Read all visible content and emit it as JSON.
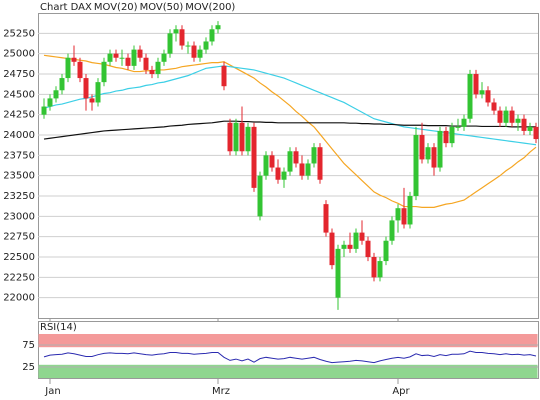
{
  "chart_data": [
    {
      "type": "candlestick",
      "title": "Chart DAX",
      "title_color": "#e0452b",
      "categories": [
        null,
        "Jan",
        null,
        null,
        null,
        null,
        null,
        null,
        null,
        null,
        null,
        null,
        null,
        null,
        null,
        null,
        null,
        null,
        null,
        null,
        null,
        null,
        null,
        null,
        null,
        null,
        null,
        null,
        null,
        "Mrz",
        null,
        null,
        null,
        null,
        null,
        null,
        null,
        null,
        null,
        null,
        null,
        null,
        null,
        null,
        null,
        null,
        null,
        null,
        null,
        null,
        null,
        null,
        null,
        null,
        null,
        null,
        null,
        null,
        null,
        "Apr",
        null,
        null,
        null,
        null,
        null,
        null,
        null,
        null,
        null,
        null,
        null,
        null,
        null,
        null,
        null,
        null,
        null,
        null,
        null,
        null,
        null,
        null,
        null
      ],
      "open": [
        24250,
        24350,
        24450,
        24550,
        24700,
        24950,
        24900,
        24700,
        24450,
        24400,
        24650,
        24900,
        25000,
        24950,
        24950,
        24850,
        25050,
        24950,
        24800,
        24750,
        24900,
        25000,
        25250,
        25300,
        25100,
        25100,
        24950,
        25050,
        25150,
        25300,
        24850,
        24150,
        23800,
        24150,
        23800,
        24100,
        23000,
        23500,
        23750,
        23600,
        23450,
        23550,
        23800,
        23650,
        23500,
        23650,
        23850,
        23150,
        22800,
        22000,
        22600,
        22650,
        22600,
        22800,
        22700,
        22500,
        22250,
        22450,
        22700,
        22950,
        23100,
        22900,
        23250,
        24000,
        23700,
        23850,
        23600,
        24050,
        23900,
        24100,
        24100,
        24200,
        24750,
        24500,
        24550,
        24400,
        24300,
        24150,
        24300,
        24150,
        24200,
        24050,
        24100
      ],
      "high": [
        24450,
        24500,
        24600,
        24750,
        25000,
        25100,
        24950,
        24750,
        24500,
        24700,
        24950,
        25050,
        25050,
        25050,
        25000,
        25100,
        25100,
        25000,
        24850,
        24950,
        25050,
        25300,
        25350,
        25350,
        25150,
        25150,
        25100,
        25200,
        25350,
        25400,
        24900,
        24200,
        24200,
        24350,
        24150,
        24150,
        23550,
        23800,
        23800,
        23700,
        23600,
        23850,
        23850,
        23750,
        23700,
        23900,
        23900,
        23200,
        22850,
        22650,
        22700,
        22800,
        22850,
        22950,
        22750,
        22550,
        22500,
        22750,
        23000,
        23150,
        23350,
        23300,
        24100,
        24150,
        23900,
        23900,
        24100,
        24100,
        24150,
        24200,
        24250,
        24800,
        24800,
        24650,
        24600,
        24450,
        24350,
        24350,
        24350,
        24250,
        24250,
        24150,
        24150
      ],
      "low": [
        24200,
        24300,
        24400,
        24500,
        24650,
        24850,
        24650,
        24300,
        24300,
        24350,
        24600,
        24850,
        24900,
        24850,
        24800,
        24800,
        24900,
        24750,
        24700,
        24700,
        24850,
        24950,
        25150,
        25050,
        25000,
        24900,
        24900,
        25000,
        25100,
        25250,
        24550,
        23750,
        23750,
        23750,
        23750,
        23300,
        22950,
        23450,
        23550,
        23400,
        23350,
        23500,
        23600,
        23450,
        23450,
        23600,
        23400,
        22750,
        22350,
        21850,
        22500,
        22550,
        22550,
        22650,
        22450,
        22200,
        22200,
        22400,
        22650,
        22800,
        22850,
        22850,
        23200,
        23650,
        23650,
        23500,
        23550,
        23850,
        23850,
        24050,
        24050,
        24150,
        24450,
        24450,
        24350,
        24250,
        24100,
        24100,
        24100,
        24050,
        24000,
        24000,
        23900
      ],
      "close": [
        24350,
        24450,
        24550,
        24700,
        24950,
        24900,
        24700,
        24450,
        24400,
        24650,
        24900,
        25000,
        24950,
        24950,
        24850,
        25050,
        24950,
        24800,
        24750,
        24900,
        25000,
        25250,
        25300,
        25100,
        25100,
        24950,
        25050,
        25150,
        25300,
        25350,
        24600,
        23800,
        24150,
        23800,
        24100,
        23350,
        23500,
        23750,
        23600,
        23450,
        23550,
        23800,
        23650,
        23500,
        23650,
        23850,
        23450,
        22800,
        22400,
        22600,
        22650,
        22600,
        22800,
        22700,
        22500,
        22250,
        22450,
        22700,
        22950,
        23100,
        22900,
        23250,
        24000,
        23700,
        23850,
        23600,
        24050,
        23900,
        24100,
        24100,
        24200,
        24750,
        24500,
        24550,
        24400,
        24300,
        24150,
        24300,
        24150,
        24200,
        24050,
        24100,
        23950
      ],
      "up_color": "#33c433",
      "down_color": "#e3262e",
      "series": [
        {
          "name": "MOV(20)",
          "color": "#f5a623",
          "values": [
            24980,
            24970,
            24960,
            24950,
            24940,
            24930,
            24920,
            24910,
            24890,
            24880,
            24870,
            24850,
            24830,
            24820,
            24800,
            24780,
            24780,
            24790,
            24790,
            24800,
            24800,
            24810,
            24820,
            24840,
            24850,
            24860,
            24870,
            24880,
            24890,
            24890,
            24900,
            24860,
            24820,
            24780,
            24740,
            24700,
            24640,
            24590,
            24530,
            24480,
            24420,
            24360,
            24290,
            24230,
            24160,
            24100,
            24010,
            23920,
            23830,
            23740,
            23650,
            23580,
            23510,
            23440,
            23370,
            23300,
            23260,
            23230,
            23190,
            23160,
            23120,
            23120,
            23120,
            23110,
            23110,
            23110,
            23130,
            23150,
            23160,
            23180,
            23200,
            23250,
            23300,
            23350,
            23400,
            23450,
            23500,
            23560,
            23610,
            23670,
            23720,
            23790,
            23850
          ]
        },
        {
          "name": "MOV(50)",
          "color": "#3ccfe6",
          "values": [
            24330,
            24350,
            24370,
            24380,
            24400,
            24420,
            24440,
            24450,
            24470,
            24490,
            24510,
            24520,
            24540,
            24550,
            24570,
            24580,
            24590,
            24610,
            24620,
            24640,
            24650,
            24670,
            24690,
            24710,
            24730,
            24760,
            24790,
            24820,
            24830,
            24840,
            24850,
            24840,
            24830,
            24820,
            24810,
            24800,
            24780,
            24760,
            24740,
            24720,
            24700,
            24670,
            24640,
            24610,
            24580,
            24550,
            24520,
            24490,
            24460,
            24430,
            24400,
            24360,
            24320,
            24280,
            24240,
            24200,
            24180,
            24160,
            24140,
            24120,
            24100,
            24090,
            24080,
            24070,
            24060,
            24050,
            24040,
            24030,
            24020,
            24010,
            24000,
            23990,
            23980,
            23970,
            23960,
            23950,
            23940,
            23930,
            23920,
            23910,
            23900,
            23890,
            23880
          ]
        },
        {
          "name": "MOV(200)",
          "color": "#111111",
          "values": [
            23950,
            23960,
            23970,
            23980,
            23990,
            24000,
            24010,
            24020,
            24030,
            24040,
            24050,
            24055,
            24060,
            24065,
            24070,
            24075,
            24080,
            24085,
            24090,
            24095,
            24100,
            24110,
            24115,
            24120,
            24130,
            24135,
            24140,
            24145,
            24150,
            24160,
            24170,
            24170,
            24170,
            24165,
            24165,
            24160,
            24160,
            24155,
            24155,
            24150,
            24150,
            24150,
            24150,
            24150,
            24150,
            24150,
            24150,
            24150,
            24150,
            24150,
            24150,
            24145,
            24145,
            24140,
            24140,
            24135,
            24135,
            24130,
            24130,
            24125,
            24120,
            24120,
            24120,
            24120,
            24115,
            24115,
            24115,
            24115,
            24110,
            24110,
            24110,
            24110,
            24110,
            24105,
            24105,
            24105,
            24105,
            24105,
            24100,
            24100,
            24100,
            24100,
            24100
          ]
        }
      ],
      "ylim": [
        21750,
        25500
      ],
      "yticks": [
        22000,
        22250,
        22500,
        22750,
        23000,
        23250,
        23500,
        23750,
        24000,
        24250,
        24500,
        24750,
        25000,
        25250
      ],
      "grid": true
    },
    {
      "type": "line",
      "title": "RSI(14)",
      "series": [
        {
          "name": null,
          "color": "#2b2bb0",
          "values": [
            48,
            52,
            53,
            54,
            57,
            55,
            52,
            49,
            49,
            53,
            56,
            57,
            56,
            56,
            55,
            57,
            55,
            53,
            52,
            54,
            55,
            58,
            58,
            56,
            56,
            54,
            55,
            56,
            58,
            58,
            47,
            40,
            43,
            39,
            43,
            36,
            44,
            47,
            45,
            43,
            44,
            47,
            45,
            43,
            45,
            47,
            42,
            38,
            35,
            36,
            37,
            38,
            40,
            39,
            37,
            35,
            39,
            42,
            45,
            47,
            45,
            48,
            55,
            51,
            52,
            49,
            53,
            51,
            54,
            54,
            55,
            61,
            58,
            58,
            56,
            55,
            53,
            55,
            53,
            54,
            52,
            53,
            50
          ]
        }
      ],
      "ylim": [
        0,
        100
      ],
      "yticks": [
        25,
        75
      ],
      "bands": [
        {
          "from": 70,
          "to": 100,
          "color": "#f49a9a"
        },
        {
          "from": 0,
          "to": 30,
          "color": "#8fd68f"
        }
      ],
      "grid": true
    }
  ]
}
